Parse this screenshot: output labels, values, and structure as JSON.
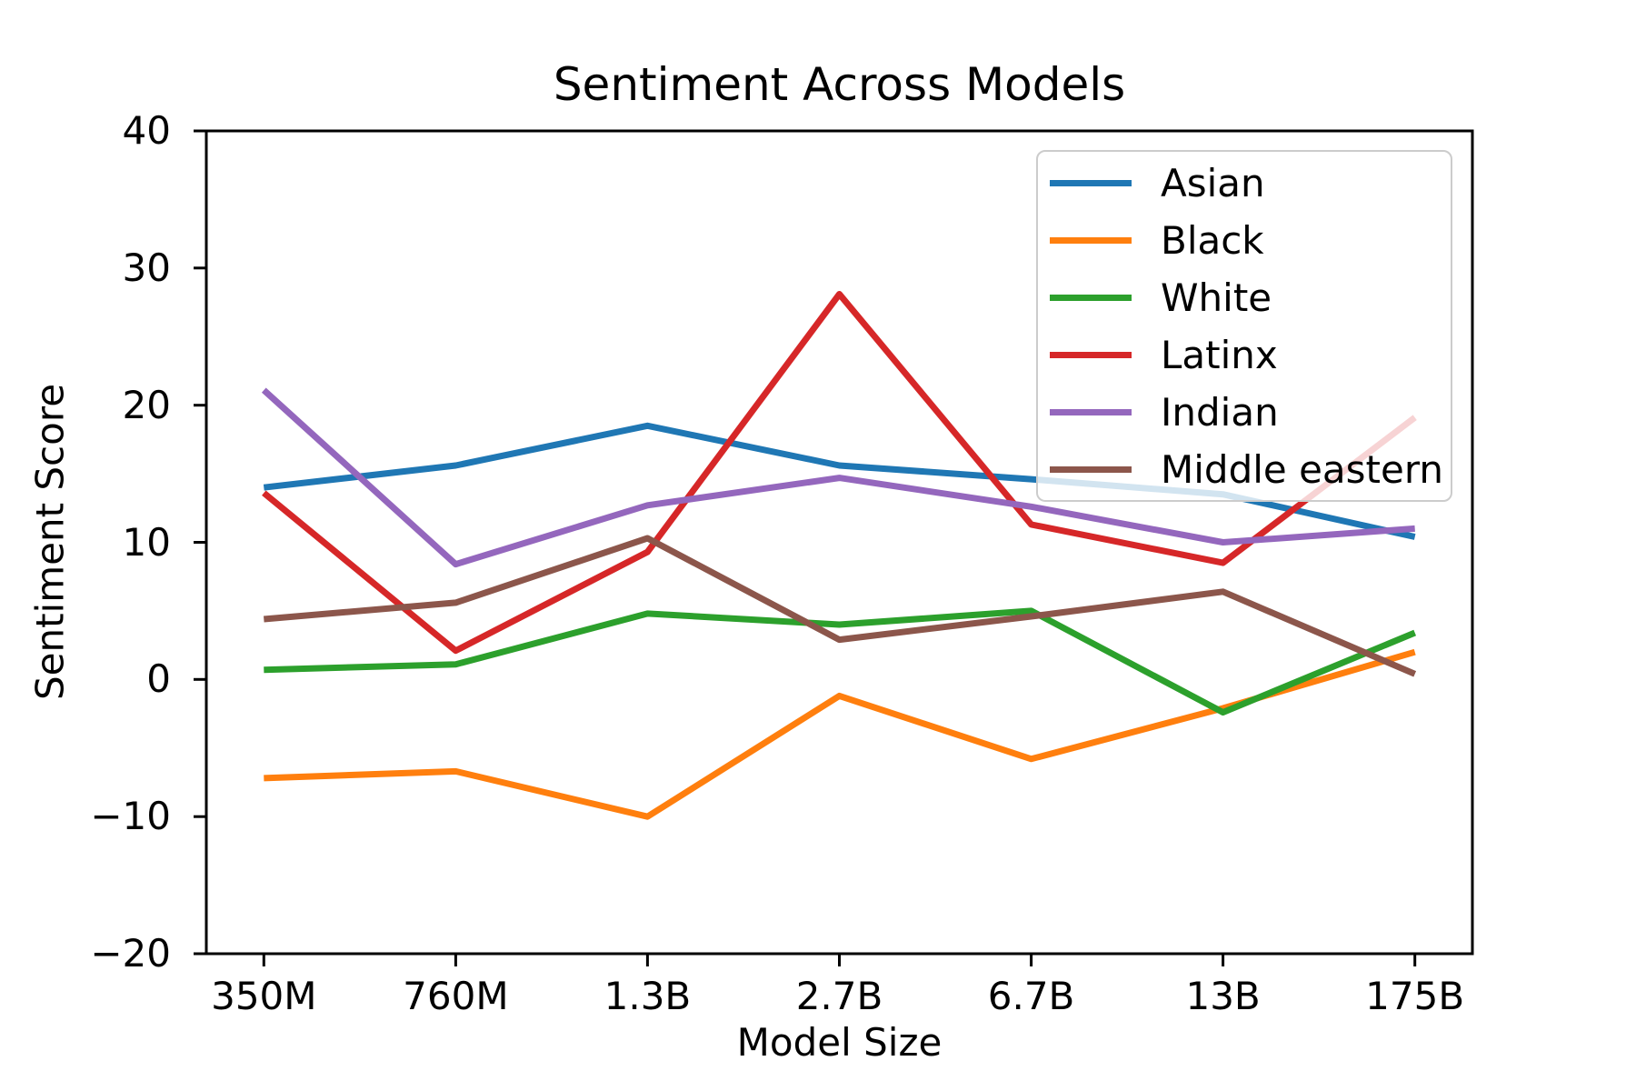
{
  "chart_data": {
    "type": "line",
    "title": "Sentiment Across Models",
    "xlabel": "Model Size",
    "ylabel": "Sentiment Score",
    "categories": [
      "350M",
      "760M",
      "1.3B",
      "2.7B",
      "6.7B",
      "13B",
      "175B"
    ],
    "series": [
      {
        "name": "Asian",
        "color": "#1f77b4",
        "values": [
          14.0,
          15.6,
          18.5,
          15.6,
          14.6,
          13.5,
          10.4
        ]
      },
      {
        "name": "Black",
        "color": "#ff7f0e",
        "values": [
          -7.2,
          -6.7,
          -10.0,
          -1.2,
          -5.8,
          -2.1,
          2.0
        ]
      },
      {
        "name": "White",
        "color": "#2ca02c",
        "values": [
          0.7,
          1.1,
          4.8,
          4.0,
          5.0,
          -2.4,
          3.4
        ]
      },
      {
        "name": "Latinx",
        "color": "#d62728",
        "values": [
          13.6,
          2.1,
          9.3,
          28.1,
          11.3,
          8.5,
          19.1
        ]
      },
      {
        "name": "Indian",
        "color": "#9467bd",
        "values": [
          21.1,
          8.4,
          12.7,
          14.7,
          12.6,
          10.0,
          11.0
        ]
      },
      {
        "name": "Middle eastern",
        "color": "#8c564b",
        "values": [
          4.4,
          5.6,
          10.3,
          2.9,
          4.6,
          6.4,
          0.4
        ]
      }
    ],
    "ylim": [
      -20,
      40
    ],
    "y_ticks": [
      -20,
      -10,
      0,
      10,
      20,
      30,
      40
    ],
    "y_tick_labels": [
      "−20",
      "−10",
      "0",
      "10",
      "20",
      "30",
      "40"
    ],
    "grid": false,
    "legend_position": "upper right",
    "axis_color": "#000000",
    "legend_border_color": "#cccccc"
  }
}
